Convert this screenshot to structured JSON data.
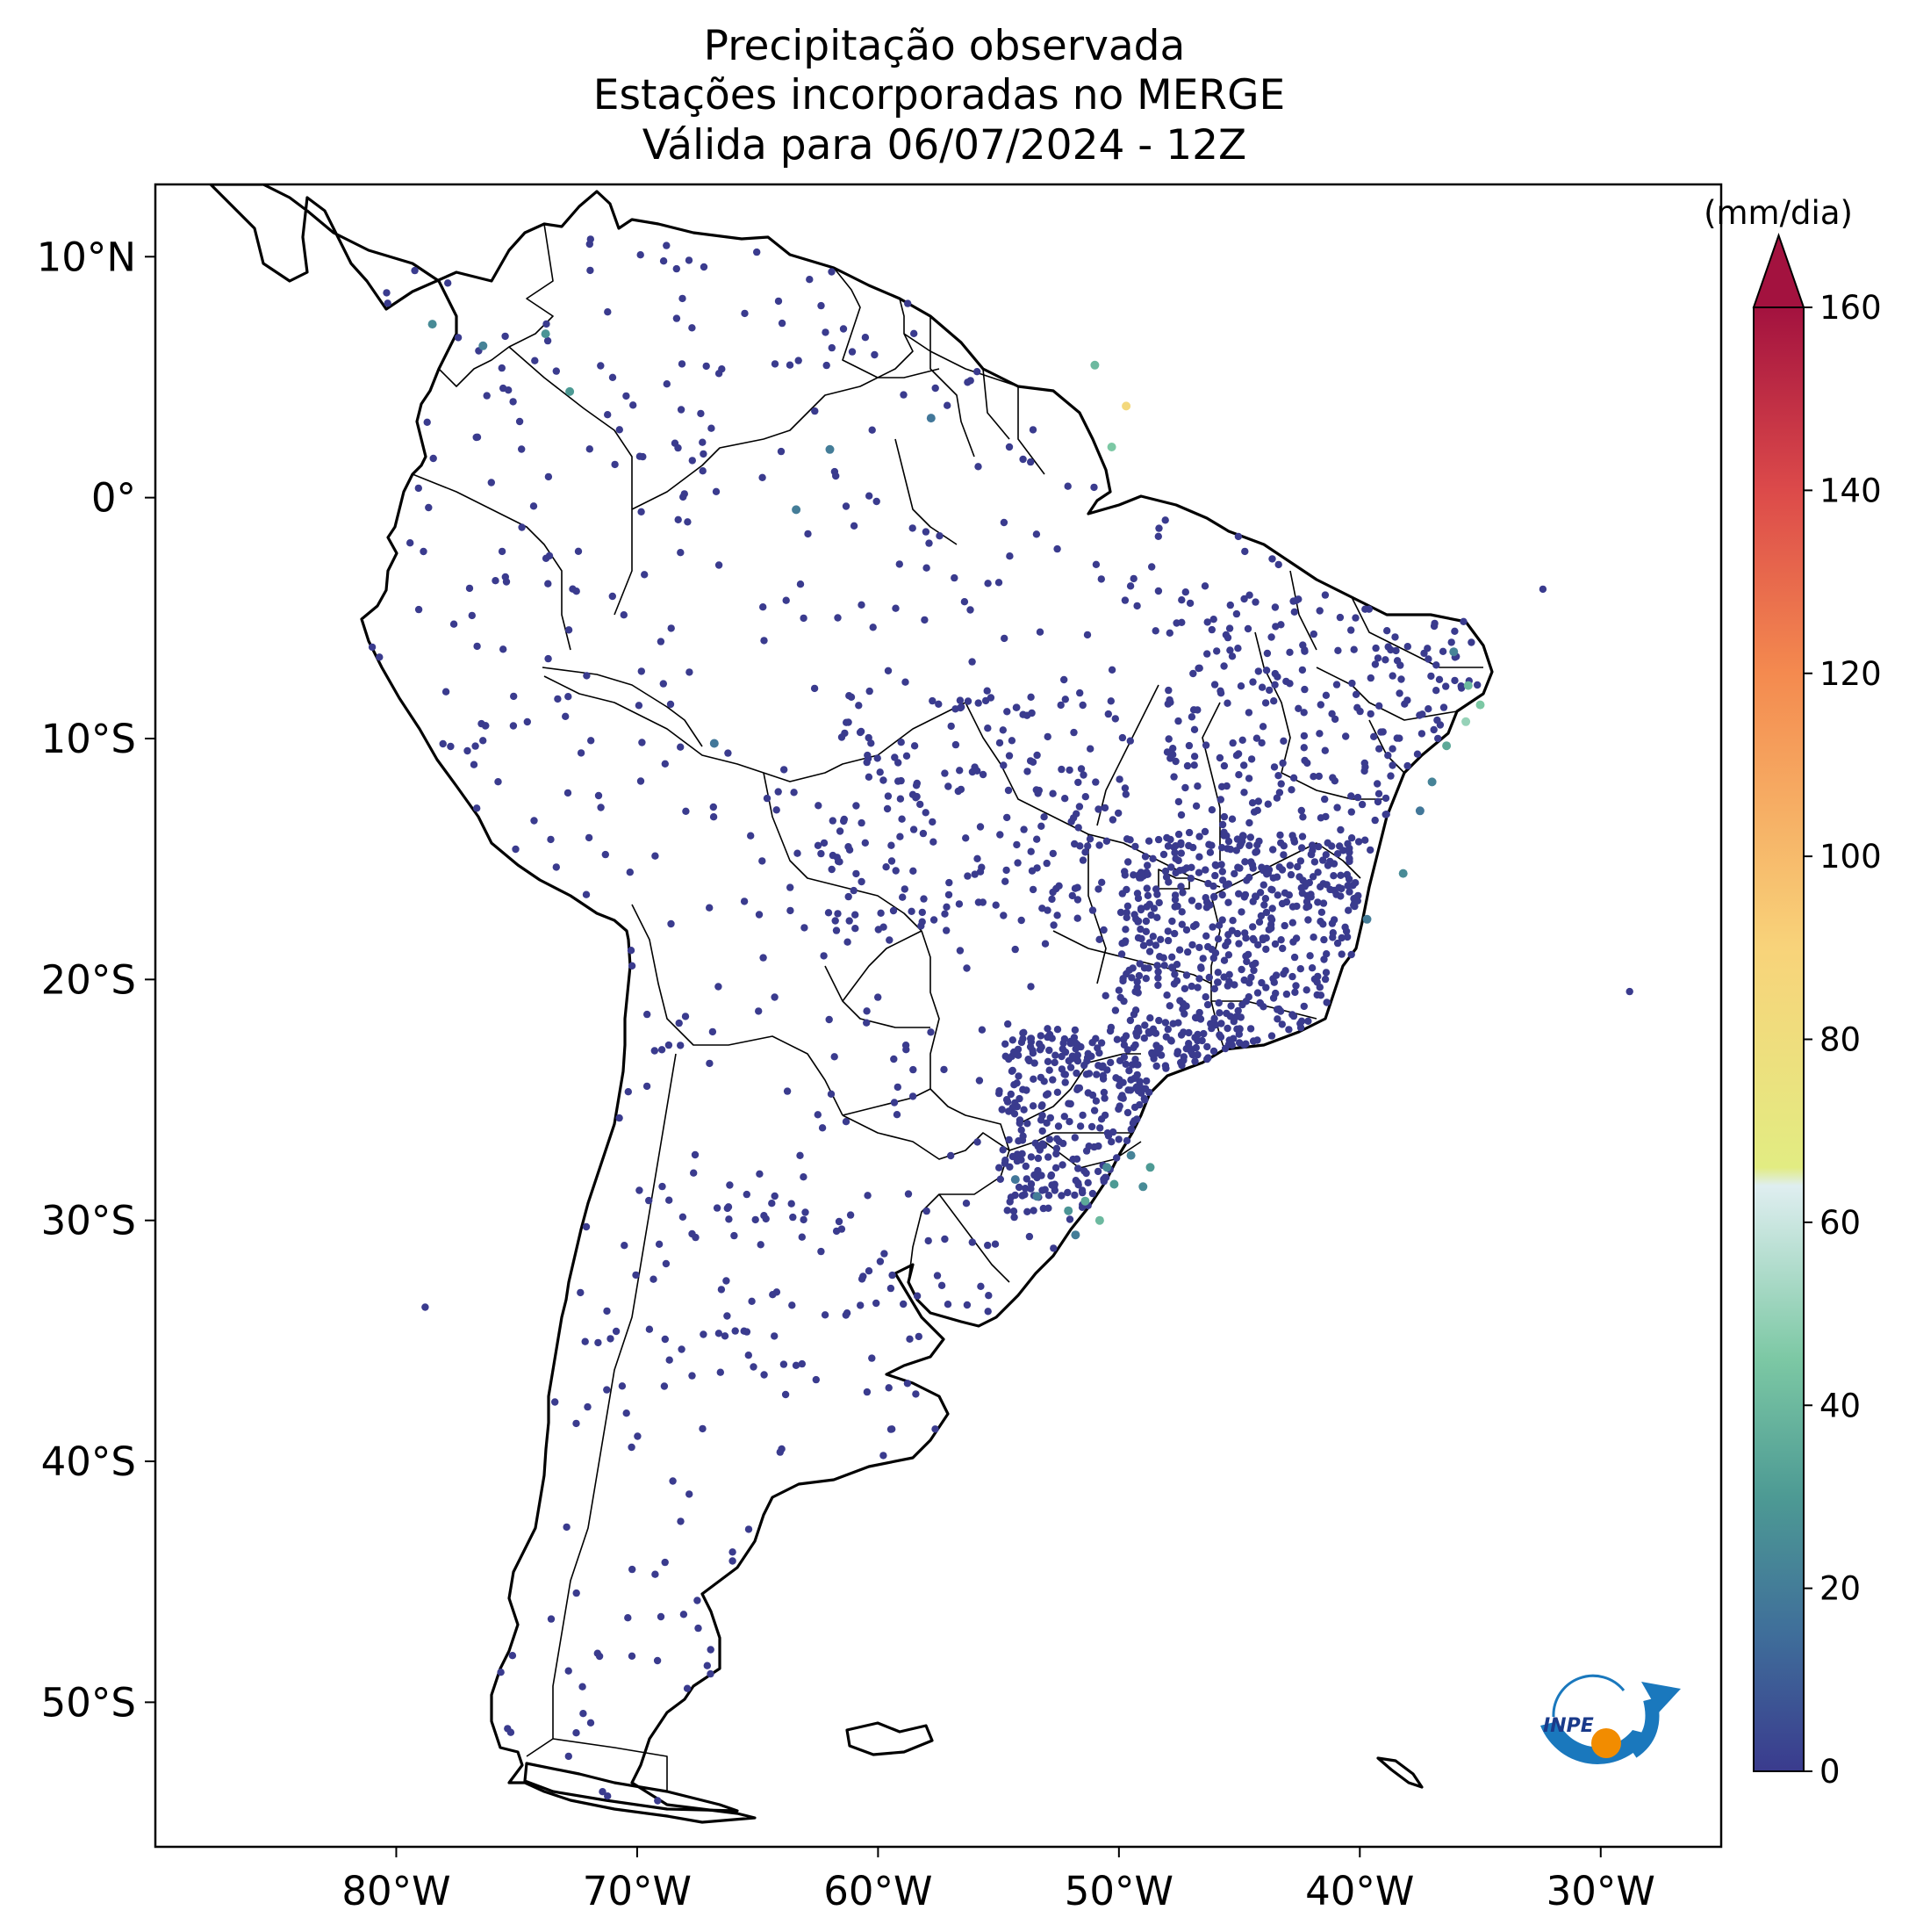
{
  "title": {
    "line1": "Precipitação observada",
    "line2": "Estações incorporadas no MERGE",
    "line3": "Válida para 06/07/2024 - 12Z"
  },
  "axes": {
    "lon_range": [
      -90,
      -25
    ],
    "lat_range": [
      -56,
      13
    ],
    "x_ticks": [
      {
        "value": -80,
        "label": "80°W"
      },
      {
        "value": -70,
        "label": "70°W"
      },
      {
        "value": -60,
        "label": "60°W"
      },
      {
        "value": -50,
        "label": "50°W"
      },
      {
        "value": -40,
        "label": "40°W"
      },
      {
        "value": -30,
        "label": "30°W"
      }
    ],
    "y_ticks": [
      {
        "value": 10,
        "label": "10°N"
      },
      {
        "value": 0,
        "label": "0°"
      },
      {
        "value": -10,
        "label": "10°S"
      },
      {
        "value": -20,
        "label": "20°S"
      },
      {
        "value": -30,
        "label": "30°S"
      },
      {
        "value": -40,
        "label": "40°S"
      },
      {
        "value": -50,
        "label": "50°S"
      }
    ]
  },
  "colorbar": {
    "unit_label": "(mm/dia)",
    "range": [
      0,
      160
    ],
    "ticks": [
      {
        "value": 0,
        "label": "0"
      },
      {
        "value": 20,
        "label": "20"
      },
      {
        "value": 40,
        "label": "40"
      },
      {
        "value": 60,
        "label": "60"
      },
      {
        "value": 80,
        "label": "80"
      },
      {
        "value": 100,
        "label": "100"
      },
      {
        "value": 120,
        "label": "120"
      },
      {
        "value": 140,
        "label": "140"
      },
      {
        "value": 160,
        "label": "160"
      }
    ],
    "stops": [
      {
        "value": 0,
        "color": "#3a3b8e"
      },
      {
        "value": 15,
        "color": "#3f6e9a"
      },
      {
        "value": 30,
        "color": "#4d9a94"
      },
      {
        "value": 45,
        "color": "#7cc8a4"
      },
      {
        "value": 64,
        "color": "#dfeef0"
      },
      {
        "value": 66,
        "color": "#e2ec82"
      },
      {
        "value": 90,
        "color": "#f8d37a"
      },
      {
        "value": 120,
        "color": "#f48a4f"
      },
      {
        "value": 140,
        "color": "#dc4a4a"
      },
      {
        "value": 160,
        "color": "#a3123f"
      }
    ]
  },
  "logo": {
    "text": "INPE"
  },
  "stations": {
    "marker_color": "#3a3b8e",
    "wet_spots": [
      [
        -78.5,
        7.2,
        25
      ],
      [
        -76.4,
        6.3,
        22
      ],
      [
        -73.8,
        6.8,
        28
      ],
      [
        -72.8,
        4.4,
        30
      ],
      [
        -62.0,
        2.0,
        20
      ],
      [
        -57.8,
        3.3,
        18
      ],
      [
        -63.4,
        -0.5,
        20
      ],
      [
        -66.8,
        -10.2,
        18
      ],
      [
        -50.3,
        2.1,
        45
      ],
      [
        -49.7,
        3.8,
        85
      ],
      [
        -51.0,
        5.5,
        40
      ],
      [
        -35.5,
        -7.8,
        40
      ],
      [
        -35.0,
        -8.6,
        45
      ],
      [
        -35.6,
        -9.3,
        50
      ],
      [
        -36.4,
        -10.3,
        35
      ],
      [
        -37.0,
        -11.8,
        22
      ],
      [
        -37.5,
        -13.0,
        18
      ],
      [
        -38.2,
        -15.6,
        25
      ],
      [
        -39.7,
        -17.5,
        20
      ],
      [
        -50.5,
        -27.8,
        25
      ],
      [
        -50.2,
        -28.5,
        30
      ],
      [
        -49.5,
        -27.3,
        22
      ],
      [
        -51.4,
        -29.2,
        35
      ],
      [
        -52.1,
        -29.6,
        28
      ],
      [
        -53.4,
        -29.0,
        20
      ],
      [
        -54.3,
        -28.3,
        18
      ],
      [
        -50.8,
        -30.0,
        40
      ],
      [
        -51.8,
        -30.6,
        20
      ],
      [
        -49.0,
        -28.6,
        25
      ],
      [
        -48.7,
        -27.8,
        30
      ],
      [
        -36.1,
        -6.4,
        22
      ]
    ]
  }
}
